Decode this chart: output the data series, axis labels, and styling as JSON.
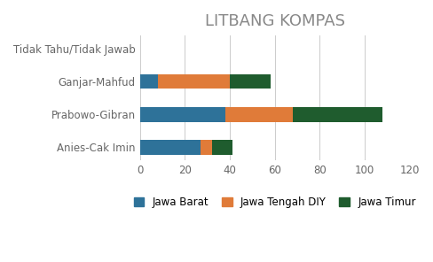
{
  "title": "LITBANG KOMPAS",
  "categories": [
    "Anies-Cak Imin",
    "Prabowo-Gibran",
    "Ganjar-Mahfud",
    "Tidak Tahu/Tidak Jawab"
  ],
  "series": [
    {
      "label": "Jawa Barat",
      "color": "#2e7299",
      "values": [
        27,
        38,
        8,
        0
      ]
    },
    {
      "label": "Jawa Tengah DIY",
      "color": "#e07b39",
      "values": [
        5,
        30,
        32,
        0
      ]
    },
    {
      "label": "Jawa Timur",
      "color": "#1f5c2e",
      "values": [
        9,
        40,
        18,
        0
      ]
    }
  ],
  "xlim": [
    0,
    120
  ],
  "xticks": [
    0,
    20,
    40,
    60,
    80,
    100,
    120
  ],
  "background_color": "#ffffff",
  "title_fontsize": 13,
  "title_color": "#888888",
  "tick_fontsize": 8.5,
  "legend_fontsize": 8.5,
  "bar_height": 0.45
}
